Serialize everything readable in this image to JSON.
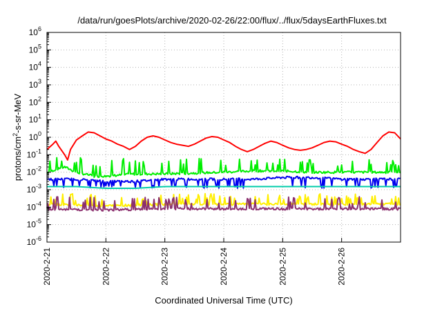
{
  "chart_data": {
    "type": "line",
    "title": "/data/run/goesPlots/archive/2020-02-26/22:00/flux/../flux/5daysEarthFluxes.txt",
    "xlabel": "Coordinated Universal Time (UTC)",
    "ylabel": {
      "prefix": "protons/cm",
      "superscript": "2",
      "suffix": "-s-sr-MeV"
    },
    "yscale": "log",
    "ylim": [
      1e-06,
      1000000.0
    ],
    "yticks": [
      {
        "base": "10",
        "exp": "-6"
      },
      {
        "base": "10",
        "exp": "-5"
      },
      {
        "base": "10",
        "exp": "-4"
      },
      {
        "base": "10",
        "exp": "-3"
      },
      {
        "base": "10",
        "exp": "-2"
      },
      {
        "base": "10",
        "exp": "-1"
      },
      {
        "base": "10",
        "exp": "0"
      },
      {
        "base": "10",
        "exp": "1"
      },
      {
        "base": "10",
        "exp": "2"
      },
      {
        "base": "10",
        "exp": "3"
      },
      {
        "base": "10",
        "exp": "4"
      },
      {
        "base": "10",
        "exp": "5"
      },
      {
        "base": "10",
        "exp": "6"
      }
    ],
    "xlim": [
      "2020-02-21 00:00",
      "2020-02-27 00:00"
    ],
    "xticks": [
      "2020-2-21",
      "2020-2-22",
      "2020-2-23",
      "2020-2-24",
      "2020-2-25",
      "2020-2-26"
    ],
    "grid": true,
    "series": [
      {
        "color": "#ff0000",
        "points": [
          [
            0.0,
            0.2
          ],
          [
            0.1,
            0.4
          ],
          [
            0.15,
            0.6
          ],
          [
            0.2,
            0.3
          ],
          [
            0.3,
            0.1
          ],
          [
            0.35,
            0.05
          ],
          [
            0.4,
            0.2
          ],
          [
            0.5,
            0.7
          ],
          [
            0.6,
            1.2
          ],
          [
            0.7,
            2.0
          ],
          [
            0.8,
            1.8
          ],
          [
            0.9,
            1.2
          ],
          [
            1.0,
            0.8
          ],
          [
            1.1,
            0.6
          ],
          [
            1.2,
            0.4
          ],
          [
            1.3,
            0.3
          ],
          [
            1.4,
            0.2
          ],
          [
            1.5,
            0.3
          ],
          [
            1.6,
            0.6
          ],
          [
            1.7,
            1.0
          ],
          [
            1.8,
            1.2
          ],
          [
            1.9,
            1.0
          ],
          [
            2.0,
            0.7
          ],
          [
            2.1,
            0.5
          ],
          [
            2.2,
            0.4
          ],
          [
            2.3,
            0.35
          ],
          [
            2.4,
            0.3
          ],
          [
            2.5,
            0.4
          ],
          [
            2.6,
            0.6
          ],
          [
            2.7,
            0.9
          ],
          [
            2.8,
            1.1
          ],
          [
            2.9,
            1.0
          ],
          [
            3.0,
            0.7
          ],
          [
            3.1,
            0.5
          ],
          [
            3.2,
            0.3
          ],
          [
            3.3,
            0.2
          ],
          [
            3.4,
            0.15
          ],
          [
            3.5,
            0.2
          ],
          [
            3.6,
            0.3
          ],
          [
            3.7,
            0.45
          ],
          [
            3.8,
            0.6
          ],
          [
            3.9,
            0.5
          ],
          [
            4.0,
            0.35
          ],
          [
            4.1,
            0.25
          ],
          [
            4.2,
            0.2
          ],
          [
            4.3,
            0.18
          ],
          [
            4.4,
            0.2
          ],
          [
            4.5,
            0.25
          ],
          [
            4.6,
            0.35
          ],
          [
            4.7,
            0.5
          ],
          [
            4.8,
            0.6
          ],
          [
            4.9,
            0.55
          ],
          [
            5.0,
            0.4
          ],
          [
            5.1,
            0.3
          ],
          [
            5.2,
            0.2
          ],
          [
            5.3,
            0.15
          ],
          [
            5.4,
            0.12
          ],
          [
            5.5,
            0.2
          ],
          [
            5.6,
            0.5
          ],
          [
            5.7,
            1.2
          ],
          [
            5.8,
            2.0
          ],
          [
            5.9,
            1.8
          ],
          [
            6.0,
            0.8
          ]
        ]
      },
      {
        "color": "#00ee00",
        "points": [
          [
            0.0,
            0.01
          ],
          [
            0.3,
            0.02
          ],
          [
            0.5,
            0.01
          ],
          [
            0.8,
            0.006
          ],
          [
            1.0,
            0.006
          ],
          [
            1.5,
            0.008
          ],
          [
            2.0,
            0.008
          ],
          [
            2.5,
            0.009
          ],
          [
            3.0,
            0.01
          ],
          [
            3.5,
            0.012
          ],
          [
            4.0,
            0.012
          ],
          [
            4.5,
            0.01
          ],
          [
            5.0,
            0.01
          ],
          [
            5.5,
            0.01
          ],
          [
            6.0,
            0.01
          ]
        ],
        "spike_to": 0.07
      },
      {
        "color": "#0000ee",
        "points": [
          [
            0.0,
            0.004
          ],
          [
            0.5,
            0.004
          ],
          [
            1.0,
            0.003
          ],
          [
            1.5,
            0.003
          ],
          [
            2.0,
            0.004
          ],
          [
            2.5,
            0.004
          ],
          [
            3.0,
            0.004
          ],
          [
            3.5,
            0.004
          ],
          [
            4.0,
            0.005
          ],
          [
            4.5,
            0.005
          ],
          [
            5.0,
            0.004
          ],
          [
            5.5,
            0.004
          ],
          [
            6.0,
            0.004
          ]
        ],
        "dip_to": 0.0015
      },
      {
        "color": "#00ccaa",
        "points": [
          [
            0.0,
            0.0015
          ],
          [
            0.5,
            0.0015
          ],
          [
            1.0,
            0.0012
          ],
          [
            1.5,
            0.0012
          ],
          [
            2.0,
            0.0015
          ],
          [
            2.5,
            0.0015
          ],
          [
            3.0,
            0.0015
          ],
          [
            3.5,
            0.0015
          ],
          [
            4.0,
            0.0015
          ],
          [
            4.5,
            0.0015
          ],
          [
            5.0,
            0.0015
          ],
          [
            5.5,
            0.0015
          ],
          [
            6.0,
            0.0015
          ]
        ]
      },
      {
        "color": "#ffee00",
        "points": [
          [
            0.0,
            0.00015
          ],
          [
            1.0,
            0.00012
          ],
          [
            2.0,
            0.00015
          ],
          [
            3.0,
            0.00015
          ],
          [
            4.0,
            0.00015
          ],
          [
            5.0,
            0.00015
          ],
          [
            6.0,
            0.00015
          ]
        ],
        "spike_to": 0.0006
      },
      {
        "color": "#8b2f6e",
        "points": [
          [
            0.0,
            8e-05
          ],
          [
            1.0,
            7e-05
          ],
          [
            2.0,
            8e-05
          ],
          [
            3.0,
            8e-05
          ],
          [
            4.0,
            8e-05
          ],
          [
            5.0,
            8e-05
          ],
          [
            6.0,
            8e-05
          ]
        ],
        "spike_to": 0.0004
      }
    ]
  }
}
